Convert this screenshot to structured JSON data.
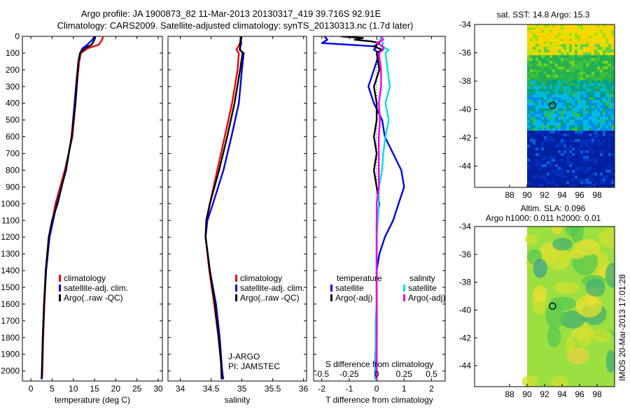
{
  "header": {
    "line1": "Argo profile: JA 1900873_82 11-Mar-2013 20130317_419 39.716S 92.91E",
    "line2": "Climatology: CARS2009. Satellite-adjusted climatology: synTS_20130313.nc (1.7d later)"
  },
  "colors": {
    "climatology": "#ee0000",
    "satellite": "#0000ee",
    "argo": "#000000",
    "sat_sal": "#00e0e0",
    "argo_sal": "#ee00ee"
  },
  "chart_data": [
    {
      "type": "line",
      "name": "temperature",
      "xlabel": "temperature (deg C)",
      "ylabel": "",
      "xlim": [
        -2,
        31
      ],
      "ylim": [
        2060,
        0
      ],
      "xticks": [
        "0",
        "5",
        "10",
        "15",
        "20",
        "25",
        "30"
      ],
      "yticks": [
        "0",
        "100",
        "200",
        "300",
        "400",
        "500",
        "600",
        "700",
        "800",
        "900",
        "1000",
        "1100",
        "1200",
        "1300",
        "1400",
        "1500",
        "1600",
        "1700",
        "1800",
        "1900",
        "2000"
      ],
      "legend": [
        "climatology",
        "satellite-adj. clim.",
        "Argo(..raw -QC)"
      ],
      "series": [
        {
          "name": "climatology",
          "color": "#ee0000",
          "depth": [
            0,
            20,
            50,
            70,
            100,
            150,
            250,
            400,
            600,
            800,
            1000,
            1200,
            1400,
            1600,
            1800,
            2000,
            2050
          ],
          "values": [
            17.0,
            16.8,
            16.0,
            13.5,
            11.8,
            11.4,
            11.0,
            10.5,
            9.8,
            8.0,
            5.8,
            4.3,
            3.6,
            3.2,
            2.9,
            2.7,
            2.6
          ]
        },
        {
          "name": "satellite",
          "color": "#0000ee",
          "depth": [
            0,
            20,
            50,
            70,
            100,
            150,
            250,
            400,
            600,
            800,
            1000,
            1200,
            1400,
            1600,
            1800,
            2000,
            2050
          ],
          "values": [
            15.0,
            14.5,
            13.3,
            12.2,
            11.6,
            11.2,
            10.8,
            10.3,
            9.6,
            8.3,
            6.1,
            4.4,
            3.6,
            3.1,
            2.8,
            2.6,
            2.5
          ]
        },
        {
          "name": "argo",
          "color": "#000000",
          "depth": [
            0,
            20,
            50,
            70,
            100,
            150,
            250,
            400,
            600,
            800,
            1000,
            1100,
            1200,
            1400,
            1600,
            1800,
            2000,
            2040
          ],
          "values": [
            15.2,
            15.0,
            14.3,
            12.8,
            11.6,
            11.2,
            10.9,
            10.5,
            9.6,
            8.2,
            6.3,
            5.0,
            4.2,
            3.5,
            3.1,
            2.8,
            2.6,
            2.6
          ]
        }
      ]
    },
    {
      "type": "line",
      "name": "salinity",
      "xlabel": "salinity",
      "xlim": [
        33.8,
        36.05
      ],
      "ylim": [
        2060,
        0
      ],
      "xticks": [
        "34",
        "34.5",
        "35",
        "35.5",
        "36"
      ],
      "legend": [
        "climatology",
        "satellite-adj. clim.",
        "Argo(..raw -QC)"
      ],
      "annotations": [
        "J-ARGO",
        "PI: JAMSTEC"
      ],
      "series": [
        {
          "name": "climatology",
          "color": "#ee0000",
          "depth": [
            0,
            40,
            80,
            100,
            200,
            400,
            600,
            800,
            1000,
            1100,
            1200,
            1400,
            1600,
            1800,
            2000,
            2050
          ],
          "values": [
            34.98,
            34.97,
            34.91,
            34.95,
            34.93,
            34.84,
            34.72,
            34.6,
            34.48,
            34.43,
            34.41,
            34.47,
            34.55,
            34.62,
            34.68,
            34.7
          ]
        },
        {
          "name": "satellite",
          "color": "#0000ee",
          "depth": [
            0,
            40,
            80,
            100,
            200,
            400,
            600,
            800,
            1000,
            1100,
            1200,
            1400,
            1600,
            1800,
            2000,
            2050
          ],
          "values": [
            34.98,
            34.99,
            34.96,
            35.03,
            35.0,
            34.95,
            34.83,
            34.7,
            34.53,
            34.44,
            34.41,
            34.48,
            34.58,
            34.64,
            34.68,
            34.69
          ]
        },
        {
          "name": "argo",
          "color": "#000000",
          "depth": [
            0,
            40,
            80,
            100,
            200,
            400,
            600,
            800,
            1000,
            1100,
            1200,
            1400,
            1600,
            1800,
            1950,
            2050
          ],
          "values": [
            34.99,
            34.97,
            34.97,
            35.01,
            34.97,
            34.88,
            34.76,
            34.63,
            34.48,
            34.42,
            34.41,
            34.48,
            34.56,
            34.62,
            34.66,
            34.67
          ]
        }
      ]
    },
    {
      "type": "line",
      "name": "differences",
      "xlabel": "T difference from climatology",
      "x2label": "S difference from climatology",
      "xlim": [
        -2.3,
        2.5
      ],
      "ylim": [
        2060,
        0
      ],
      "xticks": [
        "-2",
        "-1",
        "0",
        "1",
        "2"
      ],
      "x2ticks": [
        "-0.5",
        "-0.25",
        "0",
        "0.25",
        "0.5"
      ],
      "legend_titles": [
        "temperature",
        "salinity"
      ],
      "legend": [
        "satellite",
        "Argo(-adj)",
        "satellite",
        "Argo(-adj)"
      ],
      "series": [
        {
          "name": "T satellite",
          "color": "#0000ee",
          "depth": [
            0,
            20,
            40,
            60,
            80,
            100,
            200,
            300,
            400,
            500,
            600,
            700,
            800,
            900,
            1000,
            1100,
            1200,
            1300,
            1400,
            1500,
            1600,
            1700,
            1800,
            1900,
            2050
          ],
          "values": [
            -1.9,
            -1.8,
            -2.0,
            0.0,
            -0.1,
            0.1,
            -0.1,
            -0.3,
            -0.1,
            0.2,
            0.3,
            0.6,
            0.9,
            1.0,
            0.8,
            0.6,
            0.3,
            0.1,
            0.0,
            0.0,
            0.0,
            0.0,
            0.0,
            -0.05,
            -0.05
          ]
        },
        {
          "name": "T Argo",
          "color": "#000000",
          "depth": [
            0,
            10,
            20,
            30,
            40,
            60,
            80,
            100,
            200,
            300,
            400,
            500,
            600,
            700,
            800,
            900,
            1000,
            1100,
            1200,
            1300,
            1400,
            1500,
            1800,
            2050
          ],
          "values": [
            -1.3,
            -0.5,
            -0.8,
            -0.2,
            0.1,
            -0.1,
            0.2,
            0.0,
            0.1,
            -0.1,
            0.0,
            0.0,
            -0.1,
            0.0,
            -0.1,
            0.0,
            0.1,
            0.0,
            0.0,
            0.0,
            0.0,
            0.0,
            0.0,
            0.0
          ]
        },
        {
          "name": "S satellite",
          "color": "#00e0e0",
          "depth": [
            0,
            20,
            40,
            60,
            80,
            100,
            200,
            300,
            400,
            500,
            600,
            700,
            800,
            900,
            1000,
            1100,
            1200,
            1300,
            1400,
            1500,
            1600,
            1700,
            1800,
            1900,
            2050
          ],
          "values": [
            0.05,
            0.03,
            0.06,
            0.04,
            0.11,
            0.08,
            0.1,
            0.12,
            0.08,
            0.11,
            0.08,
            0.06,
            0.05,
            0.02,
            0.02,
            0.01,
            0.0,
            0.0,
            0.0,
            0.0,
            0.0,
            -0.01,
            -0.01,
            -0.01,
            -0.01
          ]
        },
        {
          "name": "S Argo",
          "color": "#ee00ee",
          "depth": [
            0,
            20,
            40,
            60,
            80,
            100,
            200,
            300,
            400,
            500,
            600,
            700,
            800,
            900,
            1000,
            1100,
            1200,
            1300,
            1400,
            1500,
            1800,
            2050
          ],
          "values": [
            0.04,
            0.06,
            0.0,
            0.06,
            0.06,
            0.02,
            0.04,
            0.04,
            0.02,
            0.03,
            0.02,
            0.02,
            0.02,
            0.02,
            0.0,
            0.0,
            0.0,
            0.0,
            0.0,
            0.0,
            0.0,
            0.0
          ]
        }
      ]
    },
    {
      "type": "heatmap",
      "name": "sst-map",
      "title": "sat. SST: 14.8 Argo: 15.3",
      "xlim": [
        84,
        100
      ],
      "ylim": [
        -45.5,
        -34
      ],
      "xticks": [
        "88",
        "90",
        "92",
        "94",
        "96",
        "98"
      ],
      "yticks": [
        "-34",
        "-36",
        "-38",
        "-40",
        "-42",
        "-44"
      ],
      "marker": {
        "lon": 92.91,
        "lat": -39.716
      }
    },
    {
      "type": "heatmap",
      "name": "sla-map",
      "title": "Altim. SLA: 0.096",
      "subtitle": "Argo h1000: 0.011 h2000: 0.01",
      "xlim": [
        84,
        100
      ],
      "ylim": [
        -45.5,
        -34
      ],
      "xticks": [
        "88",
        "90",
        "92",
        "94",
        "96",
        "98"
      ],
      "yticks": [
        "-34",
        "-36",
        "-38",
        "-40",
        "-42",
        "-44"
      ],
      "marker": {
        "lon": 92.91,
        "lat": -39.716
      }
    }
  ],
  "footer": {
    "stamp": "IMOS 20-Mar-2013 17:01:28"
  }
}
